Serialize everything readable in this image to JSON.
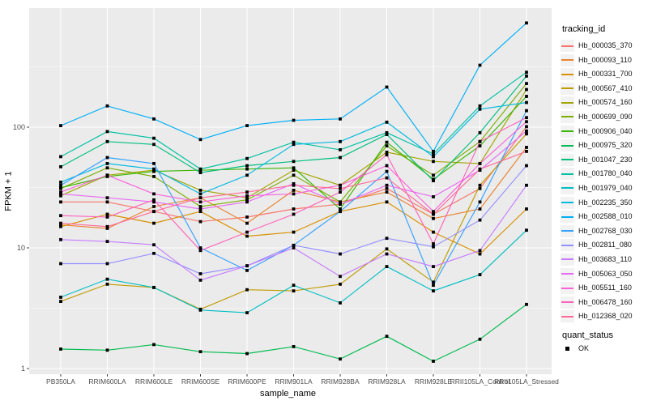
{
  "figure": {
    "background": "#FFFFFF",
    "panel_bg": "#EBEBEB",
    "grid_color": "#FFFFFF",
    "tick_label_color": "#4D4D4D",
    "axis_title_color": "#000000",
    "legend_key_bg": "#F2F2F2",
    "marker_color": "#000000"
  },
  "chart_data": {
    "type": "line",
    "title": "",
    "xlabel": "sample_name",
    "ylabel": "FPKM + 1",
    "y_scale": "log10",
    "y_ticks": [
      1,
      10,
      100
    ],
    "y_minor_ticks": [
      3.162,
      31.62,
      316.2
    ],
    "ylim": [
      1,
      950
    ],
    "grid": "on",
    "legend_position": "right",
    "legend_title": "tracking_id",
    "point_marker": "filled-square",
    "categories": [
      "PB350LA",
      "RRIM600LA",
      "RRIM600LE",
      "RRIM600SE",
      "RRIM600PE",
      "RRIM901LA",
      "RRIM928BA",
      "RRIM928LA",
      "RRIM928LE",
      "RRII105LA_Control",
      "RRII105LA_Stressed"
    ],
    "series": [
      {
        "name": "Hb_000035_370",
        "color": "#F8766D",
        "values": [
          24,
          24,
          20,
          16.5,
          18,
          21,
          23,
          31,
          19,
          31,
          101
        ]
      },
      {
        "name": "Hb_000093_110",
        "color": "#EA8331",
        "values": [
          15.5,
          14.5,
          22,
          26,
          16,
          30,
          24,
          29,
          17.5,
          21,
          68
        ]
      },
      {
        "name": "Hb_000331_700",
        "color": "#D89000",
        "values": [
          15,
          19,
          16,
          20,
          12.5,
          13.5,
          20,
          24,
          13.5,
          8.9,
          21
        ]
      },
      {
        "name": "Hb_000567_410",
        "color": "#C09B00",
        "values": [
          3.6,
          5,
          4.7,
          3.1,
          4.5,
          4.4,
          5,
          9.8,
          5.2,
          33,
          88
        ]
      },
      {
        "name": "Hb_000574_160",
        "color": "#A3A500",
        "values": [
          27,
          40,
          44,
          30,
          26,
          44,
          33,
          62,
          52,
          50,
          205
        ]
      },
      {
        "name": "Hb_000699_090",
        "color": "#7CAE00",
        "values": [
          31,
          46,
          39,
          22,
          25,
          40,
          24,
          70,
          40,
          76,
          230
        ]
      },
      {
        "name": "Hb_000906_040",
        "color": "#39B600",
        "values": [
          31.5,
          39,
          43,
          44,
          45,
          46,
          21,
          75,
          37,
          70,
          180
        ]
      },
      {
        "name": "Hb_000975_320",
        "color": "#00BB4E",
        "values": [
          1.45,
          1.42,
          1.58,
          1.38,
          1.33,
          1.52,
          1.2,
          1.85,
          1.15,
          1.75,
          3.4
        ]
      },
      {
        "name": "Hb_001047_230",
        "color": "#00BF7D",
        "values": [
          47,
          76,
          72,
          42,
          48,
          52,
          56,
          87,
          36,
          90,
          265
        ]
      },
      {
        "name": "Hb_001780_040",
        "color": "#00C1A3",
        "values": [
          57,
          92,
          81,
          45,
          55,
          75,
          65,
          90,
          60,
          150,
          285
        ]
      },
      {
        "name": "Hb_001979_040",
        "color": "#00BFC4",
        "values": [
          3.9,
          5.5,
          4.7,
          3.05,
          2.9,
          4.9,
          3.5,
          7,
          4.4,
          6,
          14
        ]
      },
      {
        "name": "Hb_002235_350",
        "color": "#00BAE0",
        "values": [
          35,
          50,
          45,
          28,
          40,
          72,
          76,
          110,
          57,
          141,
          160
        ]
      },
      {
        "name": "Hb_002588_010",
        "color": "#00B0F6",
        "values": [
          103,
          150,
          117,
          79,
          103,
          114,
          117,
          215,
          63,
          326,
          730
        ]
      },
      {
        "name": "Hb_002768_030",
        "color": "#35A2FF",
        "values": [
          33,
          56,
          50,
          10,
          6.5,
          10.5,
          20,
          43,
          4.9,
          24,
          137
        ]
      },
      {
        "name": "Hb_002811_080",
        "color": "#9590FF",
        "values": [
          7.4,
          7.4,
          9,
          6.1,
          7.1,
          10.5,
          8.9,
          12,
          10.2,
          17,
          48
        ]
      },
      {
        "name": "Hb_003683_110",
        "color": "#C77CFF",
        "values": [
          11.7,
          11.3,
          10.6,
          5.4,
          7.1,
          10,
          5.8,
          8.9,
          7,
          9.5,
          33
        ]
      },
      {
        "name": "Hb_005063_050",
        "color": "#E76BF3",
        "values": [
          28,
          26,
          24,
          21,
          24,
          34,
          23,
          33,
          26.5,
          44,
          93
        ]
      },
      {
        "name": "Hb_005511_160",
        "color": "#FA62DB",
        "values": [
          29,
          40,
          28,
          24,
          27,
          28,
          33,
          48,
          20,
          50,
          111
        ]
      },
      {
        "name": "Hb_006478_160",
        "color": "#FF62BC",
        "values": [
          18.5,
          18,
          25,
          9.5,
          13.5,
          19,
          29,
          59,
          10.8,
          76,
          120
        ]
      },
      {
        "name": "Hb_012368_020",
        "color": "#FF6A98",
        "values": [
          16,
          15,
          20,
          26,
          29,
          33,
          31,
          38,
          19,
          45,
          63
        ]
      }
    ],
    "legend2_title": "quant_status",
    "legend2_items": [
      {
        "label": "OK",
        "marker": "black-square"
      }
    ]
  }
}
